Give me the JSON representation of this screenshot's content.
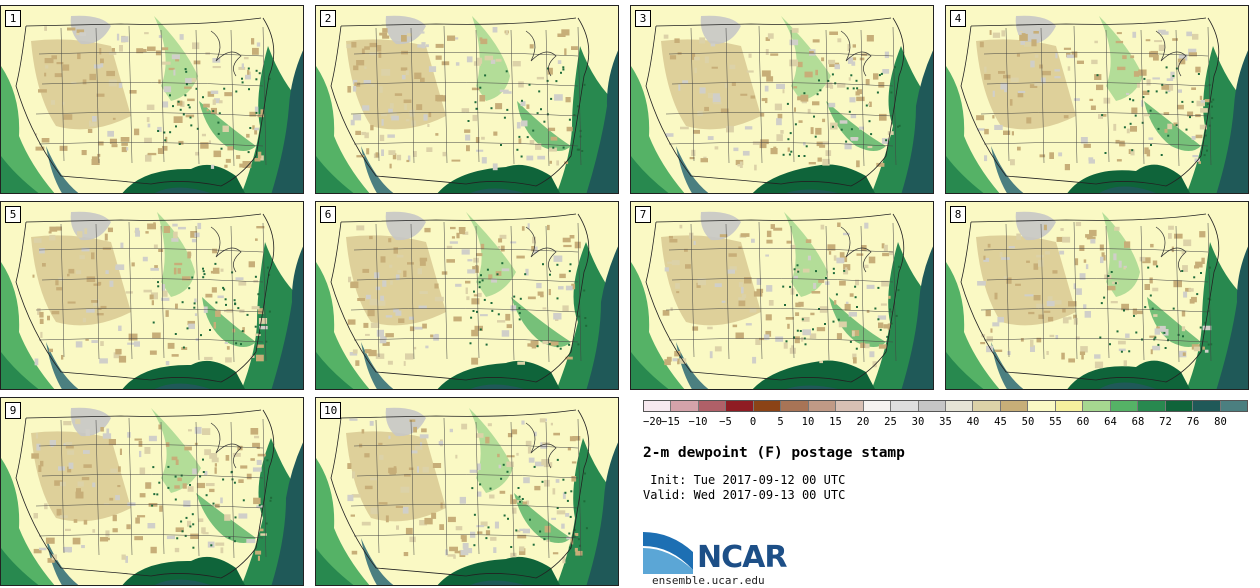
{
  "panels": [
    {
      "label": "1",
      "variant": 1
    },
    {
      "label": "2",
      "variant": 2
    },
    {
      "label": "3",
      "variant": 3
    },
    {
      "label": "4",
      "variant": 4
    },
    {
      "label": "5",
      "variant": 5
    },
    {
      "label": "6",
      "variant": 6
    },
    {
      "label": "7",
      "variant": 7
    },
    {
      "label": "8",
      "variant": 8
    },
    {
      "label": "9",
      "variant": 9
    },
    {
      "label": "10",
      "variant": 10
    }
  ],
  "colorbar": {
    "colors": [
      "#f7e9ef",
      "#d4a3aa",
      "#b06068",
      "#8f1c23",
      "#8b4316",
      "#a87456",
      "#c09a86",
      "#d8c0b4",
      "#f6f3f1",
      "#dedede",
      "#c6c6c6",
      "#e6e4d6",
      "#dcd2a8",
      "#c7ae78",
      "#faf9c4",
      "#f5f09e",
      "#a6d890",
      "#55b266",
      "#28894f",
      "#0f643a",
      "#1f5958",
      "#4b7f80"
    ],
    "ticks": [
      "−20",
      "−15",
      "−10",
      "−5",
      "0",
      "5",
      "10",
      "15",
      "20",
      "25",
      "30",
      "35",
      "40",
      "45",
      "50",
      "55",
      "60",
      "64",
      "68",
      "72",
      "76",
      "80"
    ]
  },
  "title": "2-m dewpoint (F) postage stamp",
  "init_text": " Init: Tue 2017-09-12 00 UTC",
  "valid_text": "Valid: Wed 2017-09-13 00 UTC",
  "logo_text": "NCAR",
  "site_text": "ensemble.ucar.edu"
}
